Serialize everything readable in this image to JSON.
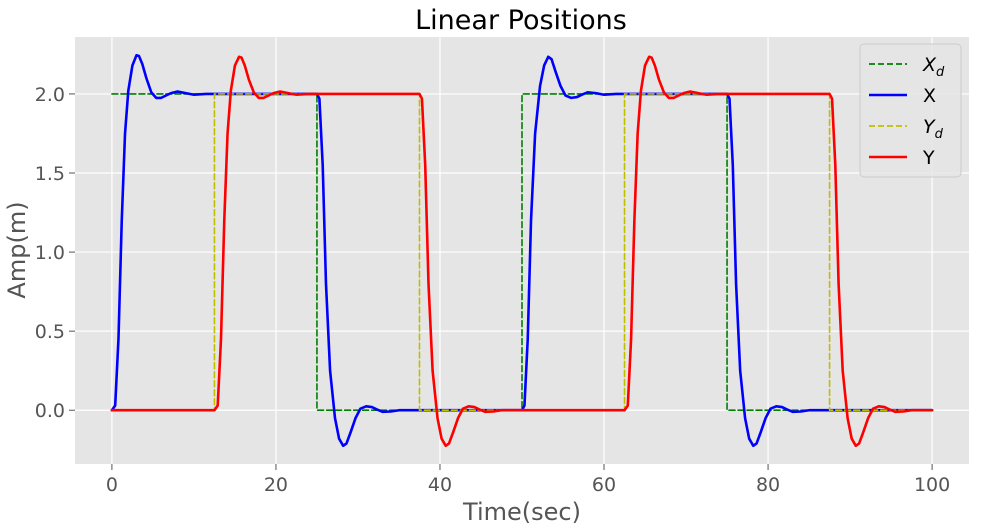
{
  "chart_data": {
    "type": "line",
    "title": "Linear Positions",
    "xlabel": "Time(sec)",
    "ylabel": "Amp(m)",
    "xlim": [
      -4.5,
      104.5
    ],
    "ylim": [
      -0.34,
      2.36
    ],
    "xticks": [
      0,
      20,
      40,
      60,
      80,
      100
    ],
    "xtick_labels": [
      "0",
      "20",
      "40",
      "60",
      "80",
      "100"
    ],
    "yticks": [
      0.0,
      0.5,
      1.0,
      1.5,
      2.0
    ],
    "ytick_labels": [
      "0.0",
      "0.5",
      "1.0",
      "1.5",
      "2.0"
    ],
    "grid": true,
    "legend_position": "top-right",
    "series": [
      {
        "name": "X_d",
        "legend_main": "X",
        "legend_sub": "d",
        "style": "dashed",
        "color": "#008000",
        "x": [
          0,
          25,
          25,
          50,
          50,
          75,
          75,
          100
        ],
        "y": [
          2,
          2,
          0,
          0,
          2,
          2,
          0,
          0
        ]
      },
      {
        "name": "X",
        "legend_main": "X",
        "legend_sub": "",
        "style": "solid",
        "color": "#0000ff",
        "x": [
          0.0,
          0.4,
          0.8,
          1.2,
          1.6,
          2.0,
          2.5,
          3.0,
          3.3,
          3.7,
          4.2,
          4.8,
          5.4,
          6.0,
          6.6,
          7.2,
          8.0,
          9.0,
          10.0,
          11.5,
          13.0,
          25.0,
          25.3,
          25.7,
          26.1,
          26.6,
          27.2,
          27.7,
          28.2,
          28.6,
          29.1,
          29.7,
          30.3,
          31.0,
          31.7,
          32.3,
          33.0,
          34.0,
          35.0,
          36.5,
          38.0,
          50.0,
          50.3,
          50.7,
          51.1,
          51.6,
          52.2,
          52.7,
          53.2,
          53.6,
          54.1,
          54.7,
          55.3,
          56.0,
          56.7,
          57.3,
          58.0,
          59.0,
          60.0,
          61.5,
          63.0,
          75.0,
          75.3,
          75.7,
          76.1,
          76.6,
          77.2,
          77.7,
          78.2,
          78.6,
          79.1,
          79.7,
          80.3,
          81.0,
          81.7,
          82.3,
          83.0,
          84.0,
          85.0,
          86.5,
          88.0,
          100.0
        ],
        "y": [
          0.0,
          0.03,
          0.45,
          1.2,
          1.75,
          2.02,
          2.18,
          2.245,
          2.24,
          2.19,
          2.1,
          2.01,
          1.975,
          1.975,
          1.99,
          2.005,
          2.015,
          2.005,
          1.995,
          2.0,
          2.0,
          2.0,
          1.97,
          1.55,
          0.8,
          0.25,
          -0.05,
          -0.18,
          -0.225,
          -0.21,
          -0.14,
          -0.05,
          0.01,
          0.025,
          0.02,
          0.005,
          -0.01,
          -0.008,
          0.0,
          0.0,
          0.0,
          0.0,
          0.03,
          0.45,
          1.2,
          1.75,
          2.05,
          2.18,
          2.235,
          2.22,
          2.14,
          2.05,
          1.99,
          1.975,
          1.98,
          1.995,
          2.01,
          2.005,
          1.995,
          2.0,
          2.0,
          2.0,
          1.97,
          1.55,
          0.8,
          0.25,
          -0.05,
          -0.18,
          -0.225,
          -0.21,
          -0.14,
          -0.05,
          0.01,
          0.025,
          0.02,
          0.005,
          -0.01,
          -0.008,
          0.0,
          0.0,
          0.0,
          0.0
        ]
      },
      {
        "name": "Y_d",
        "legend_main": "Y",
        "legend_sub": "d",
        "style": "dashed",
        "color": "#bfbf00",
        "x": [
          0,
          12.5,
          12.5,
          37.5,
          37.5,
          62.5,
          62.5,
          87.5,
          87.5,
          100
        ],
        "y": [
          0,
          0,
          2,
          2,
          0,
          0,
          2,
          2,
          0,
          0
        ]
      },
      {
        "name": "Y",
        "legend_main": "Y",
        "legend_sub": "",
        "style": "solid",
        "color": "#ff0000",
        "x": [
          0.0,
          12.5,
          12.9,
          13.3,
          13.7,
          14.1,
          14.5,
          15.0,
          15.5,
          15.8,
          16.2,
          16.7,
          17.3,
          17.9,
          18.5,
          19.1,
          19.7,
          20.5,
          21.5,
          22.5,
          24.0,
          37.5,
          37.8,
          38.2,
          38.6,
          39.1,
          39.7,
          40.2,
          40.7,
          41.1,
          41.6,
          42.2,
          42.8,
          43.5,
          44.2,
          44.8,
          45.5,
          46.5,
          47.5,
          49.0,
          62.5,
          62.9,
          63.3,
          63.7,
          64.1,
          64.5,
          65.0,
          65.5,
          65.8,
          66.2,
          66.7,
          67.3,
          67.9,
          68.5,
          69.1,
          69.7,
          70.5,
          71.5,
          72.5,
          74.0,
          87.5,
          87.8,
          88.2,
          88.6,
          89.1,
          89.7,
          90.2,
          90.7,
          91.1,
          91.6,
          92.2,
          92.8,
          93.5,
          94.2,
          94.8,
          95.5,
          96.5,
          97.5,
          99.0,
          100.0
        ],
        "y": [
          0.0,
          0.0,
          0.03,
          0.45,
          1.2,
          1.75,
          2.02,
          2.18,
          2.235,
          2.23,
          2.18,
          2.09,
          2.01,
          1.975,
          1.975,
          1.99,
          2.005,
          2.015,
          2.005,
          1.995,
          2.0,
          2.0,
          1.97,
          1.55,
          0.8,
          0.25,
          -0.05,
          -0.18,
          -0.225,
          -0.21,
          -0.14,
          -0.05,
          0.01,
          0.025,
          0.02,
          0.005,
          -0.01,
          -0.008,
          0.0,
          0.0,
          0.0,
          0.03,
          0.45,
          1.2,
          1.75,
          2.02,
          2.18,
          2.235,
          2.23,
          2.18,
          2.09,
          2.01,
          1.975,
          1.975,
          1.99,
          2.005,
          2.015,
          2.005,
          1.995,
          2.0,
          2.0,
          1.97,
          1.55,
          0.8,
          0.25,
          -0.05,
          -0.18,
          -0.225,
          -0.21,
          -0.14,
          -0.05,
          0.01,
          0.025,
          0.02,
          0.005,
          -0.01,
          -0.008,
          0.0,
          0.0,
          0.0
        ]
      }
    ]
  }
}
